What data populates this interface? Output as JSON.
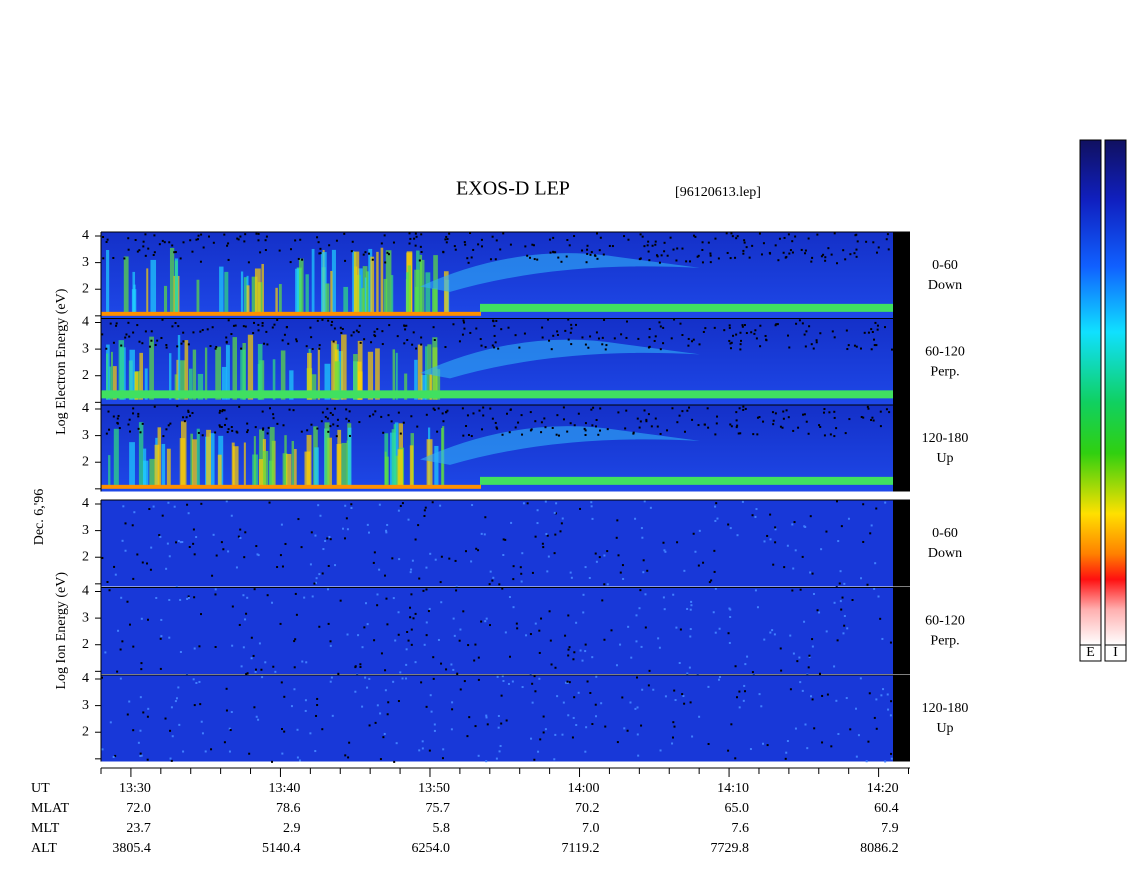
{
  "chart_data": {
    "type": "spectrogram",
    "title": "EXOS-D LEP",
    "file": "[96120613.lep]",
    "date_label": "Dec. 6,'96",
    "groups": [
      {
        "ylabel": "Log Electron Energy (eV)",
        "panels": [
          [
            "0-60",
            "Down"
          ],
          [
            "60-120",
            "Perp."
          ],
          [
            "120-180",
            "Up"
          ]
        ]
      },
      {
        "ylabel": "Log Ion Energy (eV)",
        "panels": [
          [
            "0-60",
            "Down"
          ],
          [
            "60-120",
            "Perp."
          ],
          [
            "120-180",
            "Up"
          ]
        ]
      }
    ],
    "ylim": [
      0.9,
      4.15
    ],
    "yticks": [
      2,
      3,
      4
    ],
    "yminorticks": [
      1
    ],
    "xlim": [
      808,
      862.1
    ],
    "xticks": [
      {
        "value": 810,
        "label": "13:30"
      },
      {
        "value": 820,
        "label": "13:40"
      },
      {
        "value": 830,
        "label": "13:50"
      },
      {
        "value": 840,
        "label": "14:00"
      },
      {
        "value": 850,
        "label": "14:10"
      },
      {
        "value": 860,
        "label": "14:20"
      }
    ],
    "xminorticks": [
      808,
      812,
      814,
      816,
      818,
      822,
      824,
      826,
      828,
      832,
      834,
      836,
      838,
      842,
      844,
      846,
      848,
      852,
      854,
      856,
      858,
      862
    ],
    "ephemeris": [
      {
        "name": "UT"
      },
      {
        "name": "MLAT",
        "values": [
          "72.0",
          "78.6",
          "75.7",
          "70.2",
          "65.0",
          "60.4"
        ]
      },
      {
        "name": "MLT",
        "values": [
          "23.7",
          "2.9",
          "5.8",
          "7.0",
          "7.6",
          "7.9"
        ]
      },
      {
        "name": "ALT",
        "values": [
          "3805.4",
          "5140.4",
          "6254.0",
          "7119.2",
          "7729.8",
          "8086.2"
        ]
      }
    ],
    "colorbars": [
      "E",
      "I"
    ]
  }
}
